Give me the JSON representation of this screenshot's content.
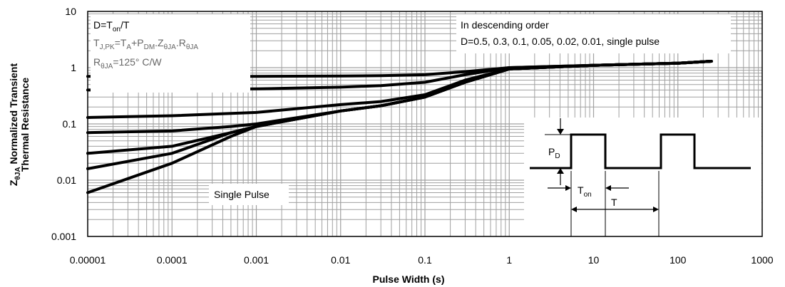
{
  "chart_data": {
    "type": "line",
    "title": "",
    "xlabel": "Pulse Width (s)",
    "ylabel_symbol": "Z",
    "ylabel_symbol_sub": "θJA",
    "ylabel_line1": " Normalized Transient",
    "ylabel_line2": "Thermal Resistance",
    "x_scale": "log",
    "y_scale": "log",
    "xlim": [
      1e-05,
      1000
    ],
    "ylim": [
      0.001,
      10
    ],
    "x_ticks": [
      "0.00001",
      "0.0001",
      "0.001",
      "0.01",
      "0.1",
      "1",
      "10",
      "100",
      "1000"
    ],
    "y_ticks": [
      "0.001",
      "0.01",
      "0.1",
      "1",
      "10"
    ],
    "grid": true,
    "annotations": {
      "d_formula_pre": "D=T",
      "d_formula_sub": "on",
      "d_formula_post": "/T",
      "tj_pre": "T",
      "tj_sub": "J,PK",
      "tj_mid1": "=T",
      "tj_sub2": "A",
      "tj_mid2": "+P",
      "tj_sub3": "DM",
      "tj_mid3": ".Z",
      "tj_sub4": "θJA",
      "tj_mid4": ".R",
      "tj_sub5": "θJA",
      "r_pre": "R",
      "r_sub": "θJA",
      "r_post": "=125° C/W",
      "order_line1": "In descending order",
      "order_line2": "D=0.5, 0.3, 0.1, 0.05, 0.02, 0.01, single pulse",
      "single_pulse": "Single Pulse",
      "pd_label": "P",
      "pd_sub": "D",
      "ton_label": "T",
      "ton_sub": "on",
      "t_label": "T"
    },
    "series": [
      {
        "x": [
          1e-05,
          0.0001,
          0.001,
          0.01,
          0.03,
          0.1,
          0.3,
          1,
          10,
          100,
          250
        ],
        "y": [
          0.7,
          0.7,
          0.7,
          0.71,
          0.72,
          0.75,
          0.85,
          1.0,
          1.1,
          1.2,
          1.3
        ]
      },
      {
        "x": [
          1e-05,
          0.0001,
          0.001,
          0.01,
          0.03,
          0.1,
          0.3,
          1,
          10,
          100,
          250
        ],
        "y": [
          0.4,
          0.41,
          0.42,
          0.45,
          0.48,
          0.55,
          0.75,
          1.0,
          1.1,
          1.2,
          1.3
        ]
      },
      {
        "x": [
          1e-05,
          0.0001,
          0.001,
          0.01,
          0.03,
          0.1,
          0.3,
          1,
          10,
          100,
          250
        ],
        "y": [
          0.13,
          0.14,
          0.16,
          0.22,
          0.25,
          0.33,
          0.6,
          0.95,
          1.1,
          1.2,
          1.3
        ]
      },
      {
        "x": [
          1e-05,
          0.0001,
          0.0005,
          0.001,
          0.01,
          0.03,
          0.1,
          0.3,
          1,
          10,
          100,
          250
        ],
        "y": [
          0.07,
          0.075,
          0.09,
          0.1,
          0.17,
          0.21,
          0.3,
          0.55,
          0.95,
          1.1,
          1.2,
          1.3
        ]
      },
      {
        "x": [
          1e-05,
          0.0001,
          0.0005,
          0.001,
          0.01,
          0.03,
          0.1,
          0.3,
          1,
          10,
          100,
          250
        ],
        "y": [
          0.03,
          0.04,
          0.07,
          0.09,
          0.17,
          0.21,
          0.3,
          0.55,
          0.95,
          1.1,
          1.2,
          1.3
        ]
      },
      {
        "x": [
          1e-05,
          0.0001,
          0.0005,
          0.001,
          0.01,
          0.03,
          0.1,
          0.3,
          1,
          10,
          100,
          250
        ],
        "y": [
          0.016,
          0.03,
          0.07,
          0.09,
          0.17,
          0.21,
          0.3,
          0.55,
          0.95,
          1.1,
          1.2,
          1.3
        ]
      },
      {
        "x": [
          1e-05,
          0.0001,
          0.0005,
          0.001,
          0.01,
          0.03,
          0.1,
          0.3,
          1,
          10,
          100,
          250
        ],
        "y": [
          0.006,
          0.02,
          0.06,
          0.09,
          0.17,
          0.21,
          0.3,
          0.55,
          0.95,
          1.1,
          1.2,
          1.3
        ]
      }
    ],
    "colors": {
      "curve": "#000000",
      "grid": "#a0a0a0",
      "overlap": "#808080"
    }
  }
}
